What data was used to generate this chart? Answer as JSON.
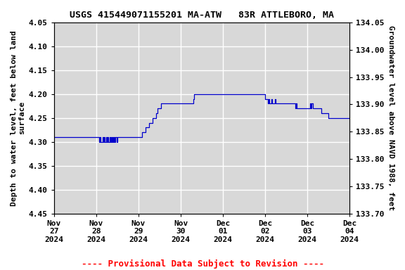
{
  "title": "USGS 415449071155201 MA-ATW   83R ATTLEBORO, MA",
  "ylabel_left": "Depth to water level, feet below land\nsurface",
  "ylabel_right": "Groundwater level above NAVD 1988, feet",
  "footnote": "---- Provisional Data Subject to Revision ----",
  "footnote_color": "#ff0000",
  "line_color": "#0000cc",
  "background_color": "#ffffff",
  "plot_background": "#d8d8d8",
  "grid_color": "#ffffff",
  "ylim_left": [
    4.05,
    4.45
  ],
  "ylim_right": [
    133.7,
    134.05
  ],
  "yticks_left": [
    4.05,
    4.1,
    4.15,
    4.2,
    4.25,
    4.3,
    4.35,
    4.4,
    4.45
  ],
  "yticks_right": [
    133.7,
    133.75,
    133.8,
    133.85,
    133.9,
    133.95,
    134.0,
    134.05
  ],
  "font_family": "monospace",
  "title_fontsize": 9.5,
  "label_fontsize": 8,
  "tick_fontsize": 8,
  "footnote_fontsize": 9,
  "data": {
    "timestamps": [
      "2024-11-27 00:00",
      "2024-11-27 12:00",
      "2024-11-28 00:00",
      "2024-11-28 01:00",
      "2024-11-28 01:30",
      "2024-11-28 02:00",
      "2024-11-28 02:30",
      "2024-11-28 03:00",
      "2024-11-28 03:30",
      "2024-11-28 04:00",
      "2024-11-28 04:30",
      "2024-11-28 05:00",
      "2024-11-28 05:30",
      "2024-11-28 06:00",
      "2024-11-28 06:30",
      "2024-11-28 07:00",
      "2024-11-28 07:30",
      "2024-11-28 08:00",
      "2024-11-28 08:30",
      "2024-11-28 09:00",
      "2024-11-28 09:15",
      "2024-11-28 09:30",
      "2024-11-28 10:00",
      "2024-11-28 10:30",
      "2024-11-28 11:00",
      "2024-11-28 11:30",
      "2024-11-28 12:00",
      "2024-11-28 18:00",
      "2024-11-29 00:00",
      "2024-11-29 02:00",
      "2024-11-29 04:00",
      "2024-11-29 05:00",
      "2024-11-29 06:00",
      "2024-11-29 07:00",
      "2024-11-29 08:00",
      "2024-11-29 09:00",
      "2024-11-29 10:00",
      "2024-11-29 11:00",
      "2024-11-29 12:00",
      "2024-11-29 13:00",
      "2024-11-29 14:00",
      "2024-11-29 16:00",
      "2024-11-29 18:00",
      "2024-11-29 20:00",
      "2024-11-29 22:00",
      "2024-11-30 00:00",
      "2024-11-30 03:00",
      "2024-11-30 06:00",
      "2024-11-30 07:00",
      "2024-11-30 07:30",
      "2024-11-30 08:00",
      "2024-11-30 09:00",
      "2024-11-30 10:00",
      "2024-11-30 12:00",
      "2024-11-30 14:00",
      "2024-11-30 16:00",
      "2024-11-30 18:00",
      "2024-11-30 20:00",
      "2024-11-30 22:00",
      "2024-12-01 00:00",
      "2024-12-01 06:00",
      "2024-12-01 12:00",
      "2024-12-01 18:00",
      "2024-12-02 00:00",
      "2024-12-02 01:00",
      "2024-12-02 01:30",
      "2024-12-02 02:00",
      "2024-12-02 02:30",
      "2024-12-02 03:00",
      "2024-12-02 03:30",
      "2024-12-02 04:00",
      "2024-12-02 05:00",
      "2024-12-02 05:30",
      "2024-12-02 06:00",
      "2024-12-02 07:00",
      "2024-12-02 08:00",
      "2024-12-02 10:00",
      "2024-12-02 12:00",
      "2024-12-02 14:00",
      "2024-12-02 16:00",
      "2024-12-02 16:30",
      "2024-12-02 17:00",
      "2024-12-02 17:30",
      "2024-12-02 18:00",
      "2024-12-02 19:00",
      "2024-12-02 20:00",
      "2024-12-02 22:00",
      "2024-12-03 00:00",
      "2024-12-03 01:00",
      "2024-12-03 01:30",
      "2024-12-03 02:00",
      "2024-12-03 02:30",
      "2024-12-03 03:00",
      "2024-12-03 04:00",
      "2024-12-03 05:00",
      "2024-12-03 06:00",
      "2024-12-03 08:00",
      "2024-12-03 10:00",
      "2024-12-03 12:00",
      "2024-12-03 16:00",
      "2024-12-03 20:00",
      "2024-12-04 00:00"
    ],
    "values": [
      4.29,
      4.29,
      4.29,
      4.29,
      4.3,
      4.29,
      4.3,
      4.3,
      4.29,
      4.3,
      4.29,
      4.3,
      4.29,
      4.3,
      4.29,
      4.3,
      4.29,
      4.3,
      4.29,
      4.3,
      4.29,
      4.3,
      4.29,
      4.3,
      4.29,
      4.3,
      4.29,
      4.29,
      4.29,
      4.28,
      4.27,
      4.27,
      4.26,
      4.26,
      4.25,
      4.25,
      4.24,
      4.23,
      4.23,
      4.22,
      4.22,
      4.22,
      4.22,
      4.22,
      4.22,
      4.22,
      4.22,
      4.22,
      4.21,
      4.2,
      4.2,
      4.2,
      4.2,
      4.2,
      4.2,
      4.2,
      4.2,
      4.2,
      4.2,
      4.2,
      4.2,
      4.2,
      4.2,
      4.21,
      4.21,
      4.22,
      4.21,
      4.22,
      4.22,
      4.21,
      4.22,
      4.22,
      4.21,
      4.22,
      4.22,
      4.22,
      4.22,
      4.22,
      4.22,
      4.22,
      4.22,
      4.23,
      4.22,
      4.23,
      4.23,
      4.23,
      4.23,
      4.23,
      4.23,
      4.22,
      4.23,
      4.22,
      4.23,
      4.23,
      4.23,
      4.23,
      4.24,
      4.24,
      4.25,
      4.25,
      4.25,
      4.25
    ]
  },
  "xlim_start": "2024-11-27 00:00",
  "xlim_end": "2024-12-04 00:00",
  "xtick_dates": [
    "2024-11-27 00:00",
    "2024-11-28 00:00",
    "2024-11-29 00:00",
    "2024-11-30 00:00",
    "2024-12-01 00:00",
    "2024-12-02 00:00",
    "2024-12-03 00:00",
    "2024-12-04 00:00"
  ],
  "xtick_labels": [
    "Nov\n27\n2024",
    "Nov\n28\n2024",
    "Nov\n29\n2024",
    "Nov\n30\n2024",
    "Dec\n01\n2024",
    "Dec\n02\n2024",
    "Dec\n03\n2024",
    "Dec\n04\n2024"
  ]
}
